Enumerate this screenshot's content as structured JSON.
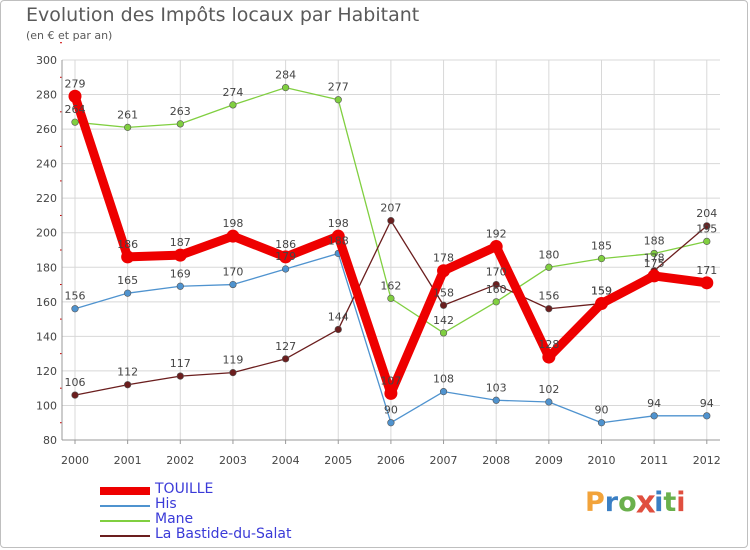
{
  "title": "Evolution des Impôts locaux par Habitant",
  "subtitle": "(en € et par an)",
  "logo": {
    "text": "Proxiti",
    "letters": [
      "P",
      "r",
      "o",
      "x",
      "i",
      "t",
      "i"
    ],
    "colors": [
      "#f2a33a",
      "#3a7fc4",
      "#6ab04c",
      "#e04f3f",
      "#3a7fc4",
      "#6ab04c",
      "#e04f3f"
    ]
  },
  "chart_data": {
    "type": "line",
    "title": "Evolution des Impôts locaux par Habitant",
    "subtitle": "(en € et par an)",
    "xlabel": "",
    "ylabel": "",
    "x": [
      "2000",
      "2001",
      "2002",
      "2003",
      "2004",
      "2005",
      "2006",
      "2007",
      "2008",
      "2009",
      "2010",
      "2011",
      "2012"
    ],
    "ylim": [
      80,
      300
    ],
    "yticks": [
      80,
      100,
      120,
      140,
      160,
      180,
      200,
      220,
      240,
      260,
      280,
      300
    ],
    "grid": true,
    "legend_position": "bottom-left",
    "series": [
      {
        "name": "TOUILLE",
        "color": "#ee0000",
        "highlight": true,
        "values": [
          279,
          186,
          187,
          198,
          186,
          198,
          107,
          178,
          192,
          128,
          159,
          175,
          171
        ],
        "labels": [
          "279",
          "186",
          "187",
          "198",
          "186",
          "198",
          "107",
          "178",
          "192",
          "128",
          "159",
          "175",
          "171"
        ]
      },
      {
        "name": "His",
        "color": "#4f93cf",
        "highlight": false,
        "values": [
          156,
          165,
          169,
          170,
          179,
          188,
          90,
          108,
          103,
          102,
          90,
          94,
          94
        ],
        "labels": [
          "156",
          "165",
          "169",
          "170",
          "179",
          "188",
          "90",
          "108",
          "103",
          "102",
          "90",
          "94",
          "94"
        ]
      },
      {
        "name": "Mane",
        "color": "#80cf40",
        "highlight": false,
        "values": [
          264,
          261,
          263,
          274,
          284,
          277,
          162,
          142,
          160,
          180,
          185,
          188,
          195
        ],
        "labels": [
          "264",
          "261",
          "263",
          "274",
          "284",
          "277",
          "162",
          "142",
          "160",
          "180",
          "185",
          "188",
          "195"
        ]
      },
      {
        "name": "La Bastide-du-Salat",
        "color": "#6b1e1e",
        "highlight": false,
        "values": [
          106,
          112,
          117,
          119,
          127,
          144,
          207,
          158,
          170,
          156,
          159,
          178,
          204
        ],
        "labels": [
          "106",
          "112",
          "117",
          "119",
          "127",
          "144",
          "207",
          "158",
          "170",
          "156",
          "159",
          "178",
          "204"
        ]
      }
    ]
  }
}
